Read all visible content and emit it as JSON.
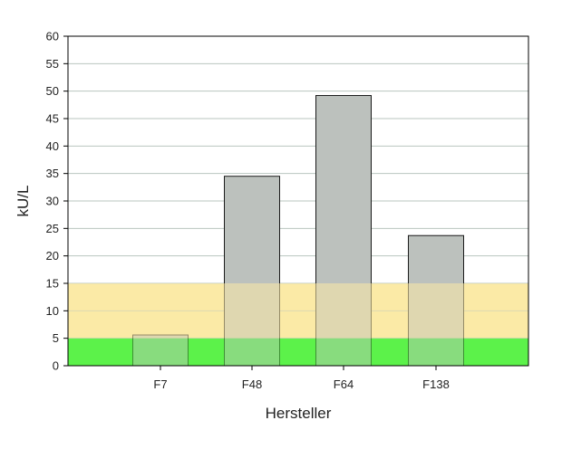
{
  "chart_data": {
    "type": "bar",
    "categories": [
      "F7",
      "F48",
      "F64",
      "F138"
    ],
    "values": [
      5.6,
      34.5,
      49.2,
      23.7
    ],
    "title": "",
    "xlabel": "Hersteller",
    "ylabel": "kU/L",
    "ylim": [
      0,
      60
    ],
    "yticks": [
      "0",
      "5",
      "10",
      "15",
      "20",
      "25",
      "30",
      "35",
      "40",
      "45",
      "50",
      "55",
      "60"
    ],
    "grid": true,
    "bands": [
      {
        "from": 0,
        "to": 5,
        "color": "#5cf24a"
      },
      {
        "from": 5,
        "to": 15,
        "color": "#fbeaa6"
      }
    ],
    "bar_color": "#bcc1bd",
    "bar_edge_color": "#1a1a1a",
    "grid_color": "#b9c6bf"
  }
}
